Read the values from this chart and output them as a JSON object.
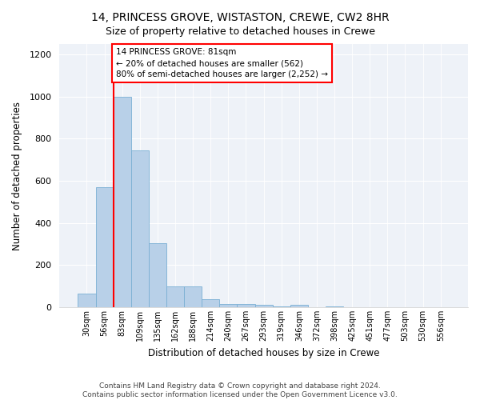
{
  "title": "14, PRINCESS GROVE, WISTASTON, CREWE, CW2 8HR",
  "subtitle": "Size of property relative to detached houses in Crewe",
  "xlabel": "Distribution of detached houses by size in Crewe",
  "ylabel": "Number of detached properties",
  "categories": [
    "30sqm",
    "56sqm",
    "83sqm",
    "109sqm",
    "135sqm",
    "162sqm",
    "188sqm",
    "214sqm",
    "240sqm",
    "267sqm",
    "293sqm",
    "319sqm",
    "346sqm",
    "372sqm",
    "398sqm",
    "425sqm",
    "451sqm",
    "477sqm",
    "503sqm",
    "530sqm",
    "556sqm"
  ],
  "values": [
    65,
    570,
    1000,
    745,
    305,
    97,
    97,
    38,
    15,
    15,
    10,
    5,
    10,
    0,
    5,
    0,
    0,
    0,
    0,
    0,
    0
  ],
  "bar_color": "#b8d0e8",
  "bar_edgecolor": "#7aafd4",
  "annotation_box_text": "14 PRINCESS GROVE: 81sqm\n← 20% of detached houses are smaller (562)\n80% of semi-detached houses are larger (2,252) →",
  "redline_bin": 2,
  "ylim": [
    0,
    1250
  ],
  "yticks": [
    0,
    200,
    400,
    600,
    800,
    1000,
    1200
  ],
  "background_color": "#eef2f8",
  "footer": "Contains HM Land Registry data © Crown copyright and database right 2024.\nContains public sector information licensed under the Open Government Licence v3.0.",
  "box_facecolor": "white",
  "box_edgecolor": "red",
  "title_fontsize": 10,
  "subtitle_fontsize": 9
}
